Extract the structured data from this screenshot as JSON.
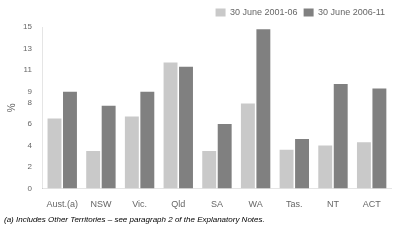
{
  "chart_data": {
    "type": "bar",
    "categories": [
      "Aust.(a)",
      "NSW",
      "Vic.",
      "Qld",
      "SA",
      "WA",
      "Tas.",
      "NT",
      "ACT"
    ],
    "series": [
      {
        "name": "30 June 2001-06",
        "color": "#c9c9c9",
        "values": [
          6.5,
          3.5,
          6.7,
          11.7,
          3.5,
          7.9,
          3.6,
          4.0,
          4.3
        ]
      },
      {
        "name": "30 June 2006-11",
        "color": "#808080",
        "values": [
          9.0,
          7.7,
          9.0,
          11.3,
          6.0,
          14.8,
          4.6,
          9.7,
          9.3
        ]
      }
    ],
    "y_label": "%",
    "ylim": [
      0,
      15
    ],
    "yticks": [
      0,
      2,
      4,
      6,
      8,
      9,
      11,
      13,
      15
    ],
    "grid": false,
    "legend": "upper right",
    "footnote": "(a) Includes Other Territories – see paragraph 2 of the Explanatory Notes."
  }
}
